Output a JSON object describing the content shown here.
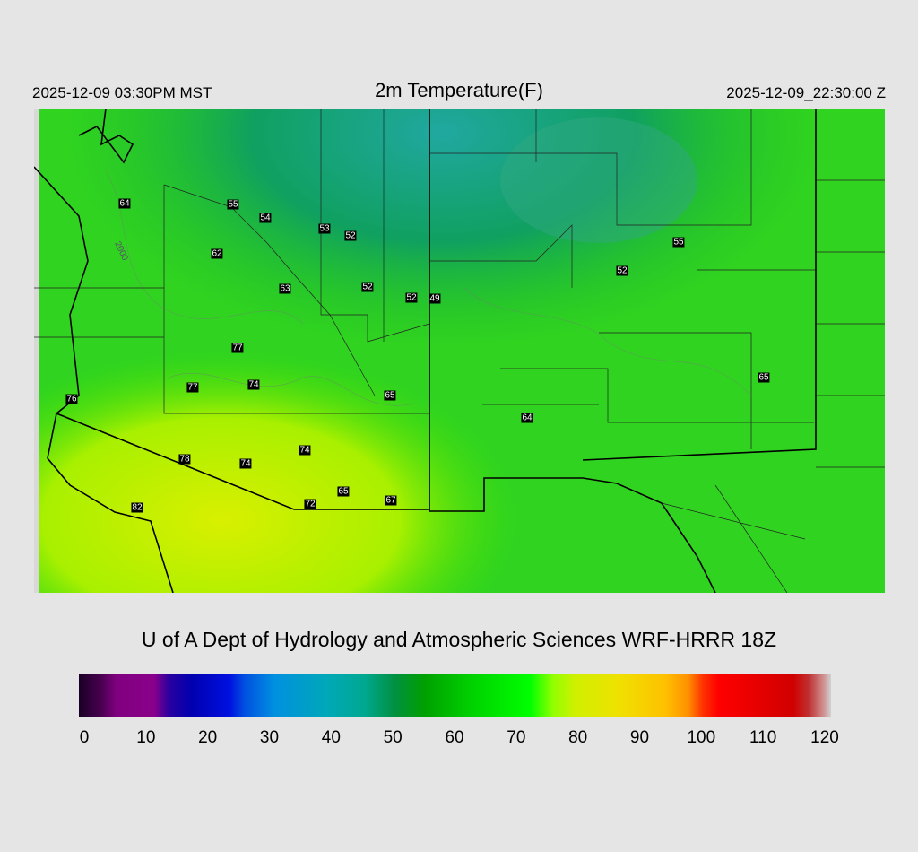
{
  "header": {
    "local_time": "2025-12-09 03:30PM MST",
    "title": "2m Temperature(F)",
    "utc_time": "2025-12-09_22:30:00 Z"
  },
  "map": {
    "contour_label": "2000",
    "stations": [
      "64",
      "55",
      "54",
      "53",
      "52",
      "62",
      "63",
      "52",
      "52",
      "49",
      "77",
      "77",
      "74",
      "65",
      "76",
      "78",
      "74",
      "74",
      "72",
      "65",
      "67",
      "64",
      "52",
      "55",
      "65",
      "82"
    ]
  },
  "credit": "U of A Dept of Hydrology and Atmospheric Sciences WRF-HRRR 18Z",
  "colorbar": {
    "ticks": [
      "0",
      "10",
      "20",
      "30",
      "40",
      "50",
      "60",
      "70",
      "80",
      "90",
      "100",
      "110",
      "120"
    ],
    "range": [
      0,
      120
    ],
    "units": "F"
  }
}
